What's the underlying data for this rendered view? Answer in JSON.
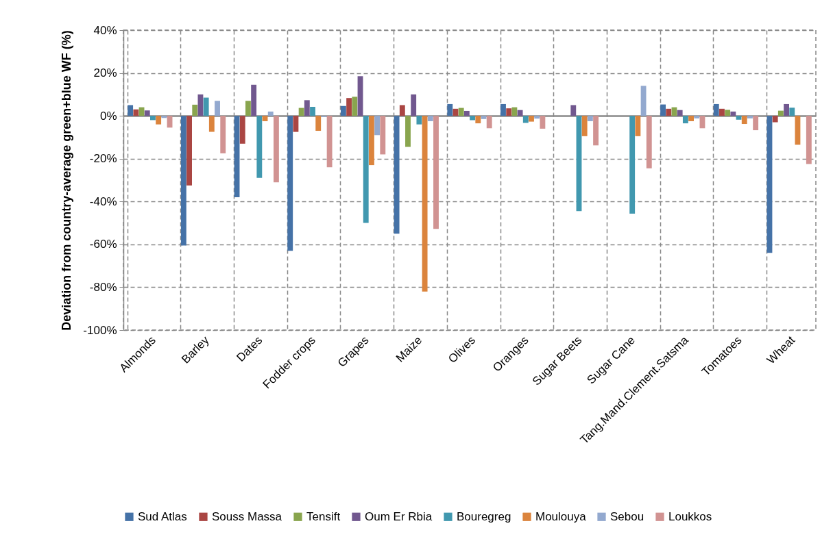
{
  "chart_data": {
    "type": "bar",
    "ylabel": "Deviation from country-average green+blue WF (%)",
    "categories": [
      "Almonds",
      "Barley",
      "Dates",
      "Fodder crops",
      "Grapes",
      "Maize",
      "Olives",
      "Oranges",
      "Sugar Beets",
      "Sugar Cane",
      "Tang.Mand.Clement.Satsma",
      "Tomatoes",
      "Wheat"
    ],
    "series": [
      {
        "name": "Sud Atlas",
        "color": "#4572a7",
        "values": [
          5,
          -60.5,
          -38,
          -63,
          4.6,
          -55,
          5.5,
          5.5,
          null,
          null,
          5.3,
          5.5,
          -64
        ]
      },
      {
        "name": "Souss Massa",
        "color": "#aa4643",
        "values": [
          3,
          -32.5,
          -13,
          -7.5,
          8.3,
          5,
          3.3,
          3.5,
          null,
          null,
          3.3,
          3.3,
          -3
        ]
      },
      {
        "name": "Tensift",
        "color": "#89a54e",
        "values": [
          4,
          5.2,
          7,
          3.7,
          8.9,
          -14.5,
          3.7,
          4,
          null,
          null,
          4,
          2.8,
          2.4
        ]
      },
      {
        "name": "Oum Er Rbia",
        "color": "#71588f",
        "values": [
          2.5,
          10,
          14.5,
          7.3,
          18.5,
          10,
          2.3,
          2.7,
          5,
          null,
          2.7,
          2,
          5.5
        ]
      },
      {
        "name": "Bouregreg",
        "color": "#4198af",
        "values": [
          -2,
          8.5,
          -29,
          4.2,
          -50,
          -4,
          -2,
          -3.3,
          -44.5,
          -45.7,
          -3.5,
          -1.8,
          3.8
        ]
      },
      {
        "name": "Moulouya",
        "color": "#db843d",
        "values": [
          -4,
          -7.5,
          -2.5,
          -7,
          -23,
          -82,
          -3.5,
          -2.7,
          -9.5,
          -9.5,
          -2.5,
          -3.8,
          -13.5
        ]
      },
      {
        "name": "Sebou",
        "color": "#93a9cf",
        "values": [
          -1,
          7,
          2,
          -0.5,
          -9,
          -2.5,
          -1.5,
          -1.3,
          -2.5,
          14,
          -1.2,
          -1.2,
          null
        ]
      },
      {
        "name": "Loukkos",
        "color": "#d19392",
        "values": [
          -5.5,
          -17.5,
          -31,
          -24,
          -18,
          -52.8,
          -5.8,
          -6,
          -13.8,
          -24.5,
          -5.8,
          -6.7,
          -22.5
        ]
      }
    ],
    "ylim": [
      -100,
      40
    ],
    "yticks": [
      {
        "value": -100,
        "label": "-100%"
      },
      {
        "value": -80,
        "label": "-80%"
      },
      {
        "value": -60,
        "label": "-60%"
      },
      {
        "value": -40,
        "label": "-40%"
      },
      {
        "value": -20,
        "label": "-20%"
      },
      {
        "value": 0,
        "label": "0%"
      },
      {
        "value": 20,
        "label": "20%"
      },
      {
        "value": 40,
        "label": "40%"
      }
    ],
    "grid": true,
    "legend": "bottom"
  }
}
